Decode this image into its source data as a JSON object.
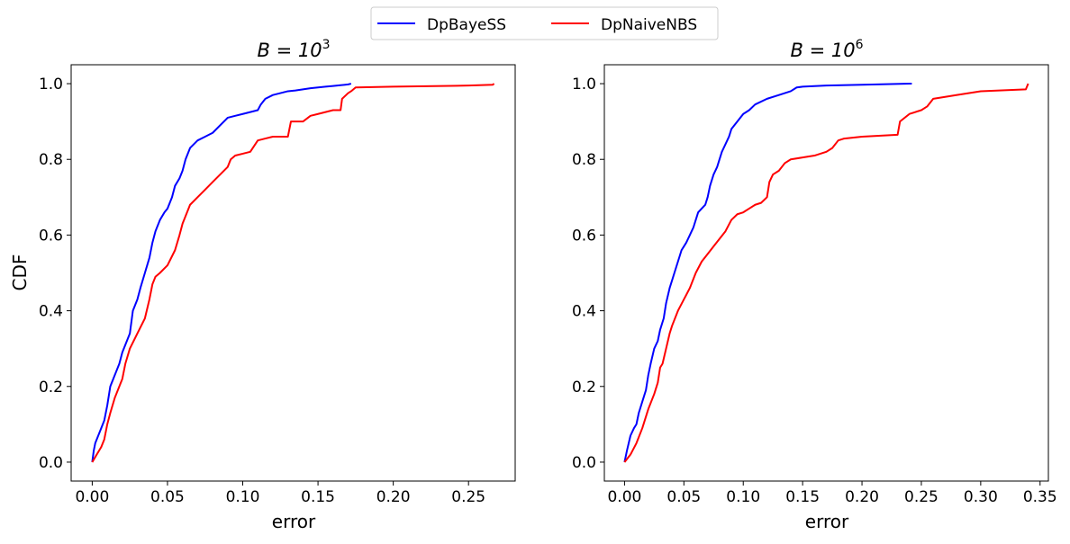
{
  "legend": {
    "placement": "top-center",
    "items": [
      {
        "label": "DpBayeSS",
        "color": "#0000ff"
      },
      {
        "label": "DpNaiveNBS",
        "color": "#ff0000"
      }
    ]
  },
  "chart_data": [
    {
      "type": "line",
      "title_text": "B = 10",
      "title_exp": "3",
      "xlabel": "error",
      "ylabel": "CDF",
      "xlim": [
        -0.014,
        0.281
      ],
      "ylim": [
        -0.05,
        1.05
      ],
      "xticks": [
        0.0,
        0.05,
        0.1,
        0.15,
        0.2,
        0.25
      ],
      "xtick_labels": [
        "0.00",
        "0.05",
        "0.10",
        "0.15",
        "0.20",
        "0.25"
      ],
      "yticks": [
        0.0,
        0.2,
        0.4,
        0.6,
        0.8,
        1.0
      ],
      "ytick_labels": [
        "0.0",
        "0.2",
        "0.4",
        "0.6",
        "0.8",
        "1.0"
      ],
      "grid": false,
      "series": [
        {
          "name": "DpBayeSS",
          "color": "#0000ff",
          "x": [
            0.0,
            0.001,
            0.002,
            0.004,
            0.006,
            0.008,
            0.01,
            0.012,
            0.015,
            0.018,
            0.02,
            0.022,
            0.025,
            0.027,
            0.03,
            0.032,
            0.035,
            0.038,
            0.04,
            0.042,
            0.045,
            0.048,
            0.05,
            0.053,
            0.055,
            0.058,
            0.06,
            0.062,
            0.065,
            0.07,
            0.075,
            0.08,
            0.085,
            0.09,
            0.095,
            0.1,
            0.105,
            0.11,
            0.112,
            0.115,
            0.12,
            0.125,
            0.13,
            0.135,
            0.14,
            0.145,
            0.15,
            0.155,
            0.16,
            0.165,
            0.17,
            0.172
          ],
          "y": [
            0.0,
            0.03,
            0.05,
            0.07,
            0.09,
            0.11,
            0.15,
            0.2,
            0.23,
            0.26,
            0.29,
            0.31,
            0.34,
            0.4,
            0.43,
            0.46,
            0.5,
            0.54,
            0.58,
            0.61,
            0.64,
            0.66,
            0.67,
            0.7,
            0.73,
            0.75,
            0.77,
            0.8,
            0.83,
            0.85,
            0.86,
            0.87,
            0.89,
            0.91,
            0.915,
            0.92,
            0.925,
            0.93,
            0.945,
            0.96,
            0.97,
            0.975,
            0.98,
            0.982,
            0.985,
            0.988,
            0.99,
            0.992,
            0.994,
            0.996,
            0.998,
            1.0
          ]
        },
        {
          "name": "DpNaiveNBS",
          "color": "#ff0000",
          "x": [
            0.0,
            0.003,
            0.006,
            0.008,
            0.01,
            0.012,
            0.015,
            0.018,
            0.02,
            0.022,
            0.025,
            0.03,
            0.035,
            0.038,
            0.04,
            0.042,
            0.045,
            0.05,
            0.055,
            0.058,
            0.06,
            0.062,
            0.065,
            0.07,
            0.075,
            0.08,
            0.085,
            0.09,
            0.092,
            0.095,
            0.1,
            0.105,
            0.11,
            0.115,
            0.12,
            0.13,
            0.131,
            0.132,
            0.14,
            0.145,
            0.15,
            0.16,
            0.165,
            0.166,
            0.17,
            0.172,
            0.175,
            0.2,
            0.25,
            0.266,
            0.267
          ],
          "y": [
            0.0,
            0.02,
            0.04,
            0.06,
            0.1,
            0.13,
            0.17,
            0.2,
            0.22,
            0.26,
            0.3,
            0.34,
            0.38,
            0.43,
            0.47,
            0.49,
            0.5,
            0.52,
            0.56,
            0.6,
            0.63,
            0.65,
            0.68,
            0.7,
            0.72,
            0.74,
            0.76,
            0.78,
            0.8,
            0.81,
            0.815,
            0.82,
            0.85,
            0.855,
            0.86,
            0.86,
            0.88,
            0.9,
            0.9,
            0.915,
            0.92,
            0.93,
            0.93,
            0.96,
            0.975,
            0.98,
            0.99,
            0.992,
            0.995,
            0.997,
            1.0
          ]
        }
      ]
    },
    {
      "type": "line",
      "title_text": "B = 10",
      "title_exp": "6",
      "xlabel": "error",
      "ylabel": "",
      "xlim": [
        -0.017,
        0.357
      ],
      "ylim": [
        -0.05,
        1.05
      ],
      "xticks": [
        0.0,
        0.05,
        0.1,
        0.15,
        0.2,
        0.25,
        0.3,
        0.35
      ],
      "xtick_labels": [
        "0.00",
        "0.05",
        "0.10",
        "0.15",
        "0.20",
        "0.25",
        "0.30",
        "0.35"
      ],
      "yticks": [
        0.0,
        0.2,
        0.4,
        0.6,
        0.8,
        1.0
      ],
      "ytick_labels": [
        "0.0",
        "0.2",
        "0.4",
        "0.6",
        "0.8",
        "1.0"
      ],
      "grid": false,
      "series": [
        {
          "name": "DpBayeSS",
          "color": "#0000ff",
          "x": [
            0.0,
            0.002,
            0.005,
            0.008,
            0.01,
            0.012,
            0.015,
            0.018,
            0.02,
            0.022,
            0.025,
            0.028,
            0.03,
            0.033,
            0.035,
            0.038,
            0.04,
            0.042,
            0.045,
            0.048,
            0.05,
            0.052,
            0.055,
            0.058,
            0.06,
            0.062,
            0.065,
            0.068,
            0.07,
            0.072,
            0.075,
            0.078,
            0.08,
            0.082,
            0.085,
            0.088,
            0.09,
            0.095,
            0.1,
            0.105,
            0.11,
            0.12,
            0.13,
            0.14,
            0.145,
            0.15,
            0.17,
            0.2,
            0.24,
            0.242
          ],
          "y": [
            0.0,
            0.03,
            0.07,
            0.09,
            0.1,
            0.13,
            0.16,
            0.19,
            0.23,
            0.26,
            0.3,
            0.32,
            0.35,
            0.38,
            0.42,
            0.46,
            0.48,
            0.5,
            0.53,
            0.56,
            0.57,
            0.58,
            0.6,
            0.62,
            0.64,
            0.66,
            0.67,
            0.68,
            0.7,
            0.73,
            0.76,
            0.78,
            0.8,
            0.82,
            0.84,
            0.86,
            0.88,
            0.9,
            0.92,
            0.93,
            0.945,
            0.96,
            0.97,
            0.98,
            0.99,
            0.992,
            0.995,
            0.997,
            1.0,
            1.0
          ]
        },
        {
          "name": "DpNaiveNBS",
          "color": "#ff0000",
          "x": [
            0.0,
            0.005,
            0.01,
            0.015,
            0.02,
            0.025,
            0.028,
            0.03,
            0.032,
            0.035,
            0.038,
            0.04,
            0.045,
            0.05,
            0.055,
            0.06,
            0.065,
            0.07,
            0.075,
            0.08,
            0.085,
            0.09,
            0.095,
            0.1,
            0.105,
            0.11,
            0.115,
            0.12,
            0.122,
            0.125,
            0.13,
            0.135,
            0.14,
            0.15,
            0.16,
            0.17,
            0.175,
            0.18,
            0.185,
            0.2,
            0.23,
            0.232,
            0.24,
            0.25,
            0.255,
            0.26,
            0.28,
            0.3,
            0.338,
            0.34
          ],
          "y": [
            0.0,
            0.02,
            0.05,
            0.09,
            0.14,
            0.18,
            0.21,
            0.25,
            0.26,
            0.3,
            0.34,
            0.36,
            0.4,
            0.43,
            0.46,
            0.5,
            0.53,
            0.55,
            0.57,
            0.59,
            0.61,
            0.64,
            0.655,
            0.66,
            0.67,
            0.68,
            0.685,
            0.7,
            0.74,
            0.76,
            0.77,
            0.79,
            0.8,
            0.805,
            0.81,
            0.82,
            0.83,
            0.85,
            0.855,
            0.86,
            0.865,
            0.9,
            0.92,
            0.93,
            0.94,
            0.96,
            0.97,
            0.98,
            0.985,
            1.0
          ]
        }
      ]
    }
  ]
}
